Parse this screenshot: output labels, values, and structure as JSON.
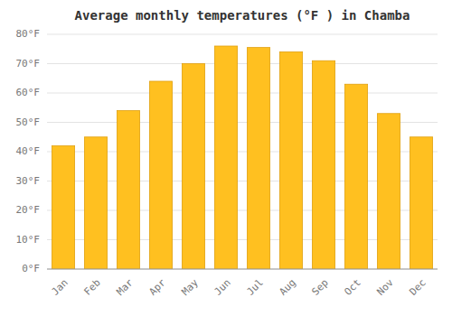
{
  "chart_data": {
    "type": "bar",
    "title": "Average monthly temperatures (°F ) in Chamba",
    "categories": [
      "Jan",
      "Feb",
      "Mar",
      "Apr",
      "May",
      "Jun",
      "Jul",
      "Aug",
      "Sep",
      "Oct",
      "Nov",
      "Dec"
    ],
    "values": [
      42,
      45,
      54,
      64,
      70,
      76,
      75.5,
      74,
      71,
      63,
      53,
      45
    ],
    "color": "#FFC020",
    "ylim": [
      0,
      80
    ],
    "yticks": [
      {
        "value": 0,
        "label": "0°F"
      },
      {
        "value": 10,
        "label": "10°F"
      },
      {
        "value": 20,
        "label": "20°F"
      },
      {
        "value": 30,
        "label": "30°F"
      },
      {
        "value": 40,
        "label": "40°F"
      },
      {
        "value": 50,
        "label": "50°F"
      },
      {
        "value": 60,
        "label": "60°F"
      },
      {
        "value": 70,
        "label": "70°F"
      },
      {
        "value": 80,
        "label": "80°F"
      }
    ],
    "grid": true
  }
}
